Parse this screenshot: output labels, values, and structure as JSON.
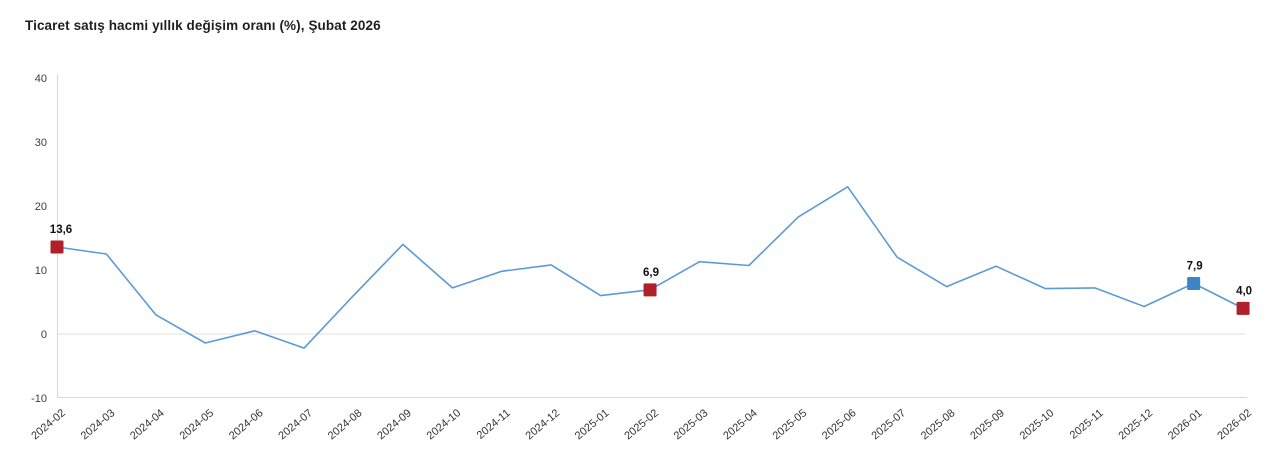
{
  "title": "Ticaret satış hacmi yıllık değişim oranı (%), Şubat 2026",
  "colors": {
    "line": "#5b9bd5",
    "red": "#b02028",
    "blue": "#3d85c6",
    "axis": "#d8d8d8",
    "zero_gridline": "#ebebeb",
    "tick_text": "#3d3d3d",
    "title_text": "#1f1f1f"
  },
  "chart_data": {
    "type": "line",
    "title": "Ticaret satış hacmi yıllık değişim oranı (%), Şubat 2026",
    "xlabel": "",
    "ylabel": "",
    "ylim": [
      -10,
      40
    ],
    "yticks": [
      40,
      30,
      20,
      10,
      0,
      -10
    ],
    "grid": "zero-line-only",
    "legend": "none",
    "x": [
      "2024-02",
      "2024-03",
      "2024-04",
      "2024-05",
      "2024-06",
      "2024-07",
      "2024-08",
      "2024-09",
      "2024-10",
      "2024-11",
      "2024-12",
      "2025-01",
      "2025-02",
      "2025-03",
      "2025-04",
      "2025-05",
      "2025-06",
      "2025-07",
      "2025-08",
      "2025-09",
      "2025-10",
      "2025-11",
      "2025-12",
      "2026-01",
      "2026-02"
    ],
    "values": [
      13.6,
      12.5,
      3.0,
      -1.4,
      0.5,
      -2.2,
      6.0,
      14.0,
      7.2,
      9.8,
      10.8,
      6.0,
      6.9,
      11.3,
      10.7,
      18.3,
      23.0,
      12.0,
      7.4,
      10.6,
      7.1,
      7.2,
      4.3,
      7.9,
      4.0
    ],
    "highlighted_points": [
      {
        "index": 0,
        "x": "2024-02",
        "value": 13.6,
        "label": "13,6",
        "color": "red"
      },
      {
        "index": 12,
        "x": "2025-02",
        "value": 6.9,
        "label": "6,9",
        "color": "red"
      },
      {
        "index": 23,
        "x": "2026-01",
        "value": 7.9,
        "label": "7,9",
        "color": "blue"
      },
      {
        "index": 24,
        "x": "2026-02",
        "value": 4.0,
        "label": "4,0",
        "color": "red"
      }
    ]
  }
}
